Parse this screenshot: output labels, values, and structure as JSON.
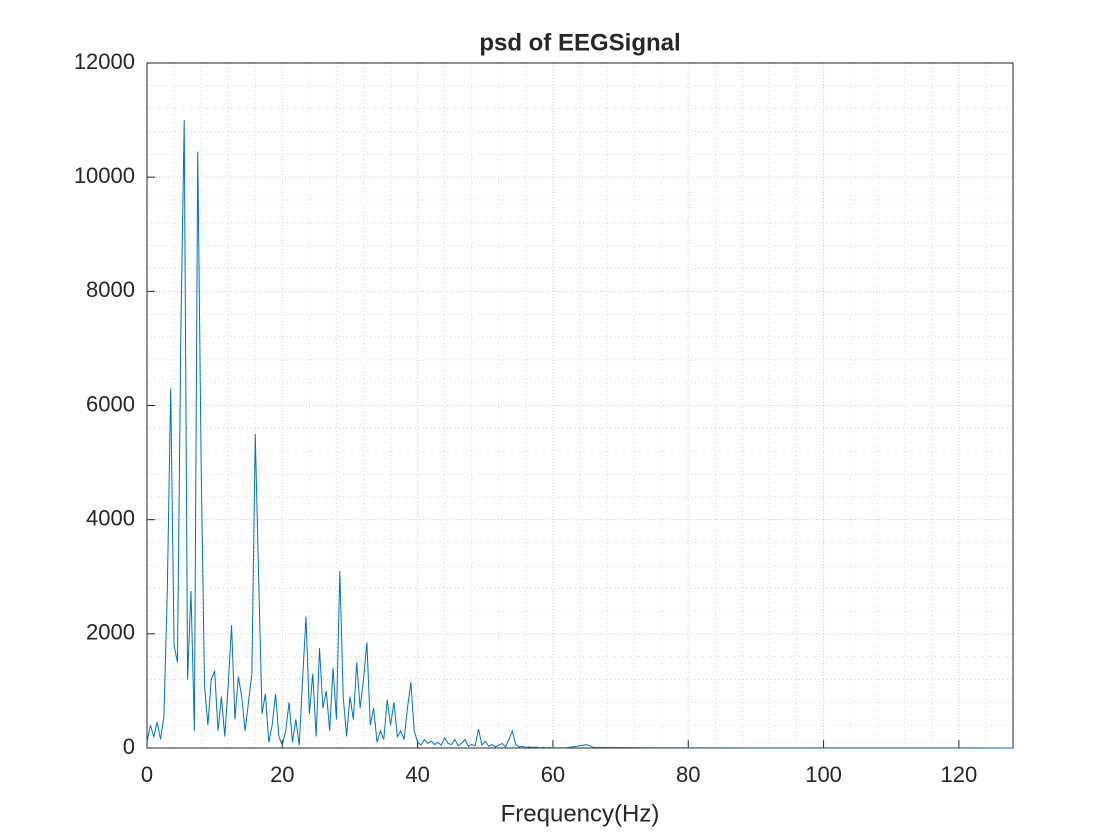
{
  "chart_data": {
    "type": "line",
    "title": "psd of EEGSignal",
    "xlabel": "Frequency(Hz)",
    "x": [
      0,
      0.5,
      1,
      1.5,
      2,
      2.5,
      3,
      3.5,
      4,
      4.5,
      5,
      5.5,
      6,
      6.5,
      7,
      7.5,
      8,
      8.5,
      9,
      9.5,
      10,
      10.5,
      11,
      11.5,
      12,
      12.5,
      13,
      13.5,
      14,
      14.5,
      15,
      15.5,
      16,
      16.5,
      17,
      17.5,
      18,
      18.5,
      19,
      19.5,
      20,
      20.5,
      21,
      21.5,
      22,
      22.5,
      23,
      23.5,
      24,
      24.5,
      25,
      25.5,
      26,
      26.5,
      27,
      27.5,
      28,
      28.5,
      29,
      29.5,
      30,
      30.5,
      31,
      31.5,
      32,
      32.5,
      33,
      33.5,
      34,
      34.5,
      35,
      35.5,
      36,
      36.5,
      37,
      37.5,
      38,
      38.5,
      39,
      39.5,
      40,
      40.5,
      41,
      41.5,
      42,
      42.5,
      43,
      43.5,
      44,
      44.5,
      45,
      45.5,
      46,
      46.5,
      47,
      47.5,
      48,
      48.5,
      49,
      49.5,
      50,
      50.5,
      51,
      51.5,
      52,
      52.5,
      53,
      53.5,
      54,
      54.5,
      55,
      55.5,
      56,
      56.5,
      57,
      57.5,
      58,
      58.5,
      59,
      59.5,
      60,
      62,
      64,
      65,
      66,
      70,
      75,
      80,
      90,
      100,
      110,
      120,
      128
    ],
    "series": [
      {
        "color": "#0072bd",
        "values": [
          100,
          400,
          200,
          450,
          150,
          550,
          2750,
          6300,
          1800,
          1500,
          7250,
          11000,
          1200,
          2750,
          300,
          10450,
          5000,
          1100,
          400,
          1200,
          1350,
          300,
          900,
          200,
          1100,
          2150,
          500,
          1250,
          900,
          300,
          800,
          1300,
          5500,
          3000,
          600,
          950,
          100,
          400,
          950,
          200,
          50,
          300,
          800,
          100,
          500,
          50,
          1200,
          2300,
          600,
          1300,
          200,
          1750,
          700,
          1000,
          300,
          1400,
          500,
          3100,
          900,
          200,
          900,
          500,
          1500,
          700,
          1200,
          1850,
          400,
          700,
          100,
          300,
          150,
          850,
          400,
          800,
          200,
          300,
          150,
          700,
          1150,
          300,
          100,
          50,
          150,
          80,
          120,
          60,
          100,
          50,
          180,
          80,
          60,
          150,
          40,
          80,
          150,
          30,
          60,
          40,
          330,
          50,
          120,
          30,
          60,
          20,
          50,
          80,
          20,
          150,
          300,
          60,
          20,
          30,
          10,
          20,
          10,
          15,
          5,
          10,
          5,
          8,
          5,
          5,
          40,
          60,
          10,
          8,
          5,
          4,
          3,
          3,
          2,
          2,
          1
        ]
      }
    ],
    "xlim": [
      0,
      128
    ],
    "xticks": [
      0,
      20,
      40,
      60,
      80,
      100,
      120
    ],
    "ylim": [
      0,
      12000
    ],
    "yticks": [
      0,
      2000,
      4000,
      6000,
      8000,
      10000,
      12000
    ],
    "grid": true,
    "minor_grid": true
  }
}
